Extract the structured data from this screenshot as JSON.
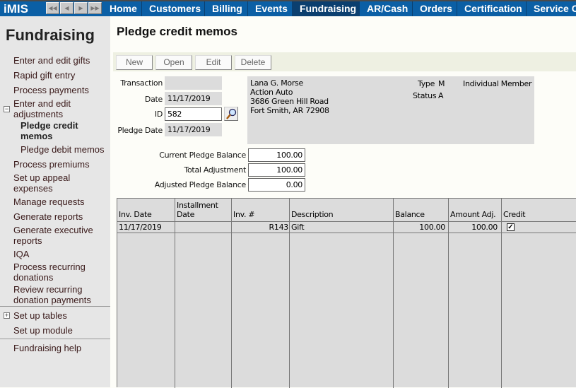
{
  "topbar": {
    "logo": "iMIS",
    "nav_buttons": [
      "first",
      "previous",
      "next",
      "last"
    ],
    "tabs": [
      "Home",
      "Customers",
      "Billing",
      "Events",
      "Fundraising",
      "AR/Cash",
      "Orders",
      "Certification",
      "Service Ce"
    ],
    "active_tab": "Fundraising",
    "color": "#0b5fa5",
    "active_color": "#0b3f6f"
  },
  "sidebar": {
    "title": "Fundraising",
    "items": [
      "Enter and edit gifts",
      "Rapid gift entry",
      "Process payments",
      "Enter and edit adjustments",
      "Pledge credit memos",
      "Pledge debit memos",
      "Process premiums",
      "Set up appeal expenses",
      "Manage requests",
      "Generate reports",
      "Generate executive reports",
      "IQA",
      "Process recurring donations",
      "Review recurring donation payments",
      "Set up tables",
      "Set up module",
      "Fundraising help"
    ],
    "current": "Pledge credit memos"
  },
  "main": {
    "title": "Pledge credit memos",
    "toolbar": {
      "new": "New",
      "open": "Open",
      "edit": "Edit",
      "delete": "Delete"
    },
    "form": {
      "transaction_label": "Transaction",
      "transaction": "",
      "date_label": "Date",
      "date": "11/17/2019",
      "id_label": "ID",
      "id": "582",
      "pledge_date_label": "Pledge Date",
      "pledge_date": "11/17/2019"
    },
    "customer": {
      "name": "Lana G. Morse",
      "company": "Action Auto",
      "street": "3686 Green Hill Road",
      "city": "Fort Smith, AR  72908",
      "type_label": "Type",
      "type": "M",
      "type_desc": "Individual Member",
      "status_label": "Status",
      "status": "A"
    },
    "balances": {
      "current_label": "Current Pledge Balance",
      "current": "100.00",
      "total_adj_label": "Total Adjustment",
      "total_adj": "100.00",
      "adjusted_label": "Adjusted Pledge Balance",
      "adjusted": "0.00"
    },
    "table": {
      "headers": [
        "Inv. Date",
        "Installment Date",
        "Inv. #",
        "Description",
        "Balance",
        "Amount Adj.",
        "Credit"
      ],
      "rows": [
        {
          "inv_date": "11/17/2019",
          "installment_date": "",
          "inv_no": "R143",
          "description": "Gift",
          "balance": "100.00",
          "amount_adj": "100.00",
          "credit": true
        }
      ]
    }
  }
}
